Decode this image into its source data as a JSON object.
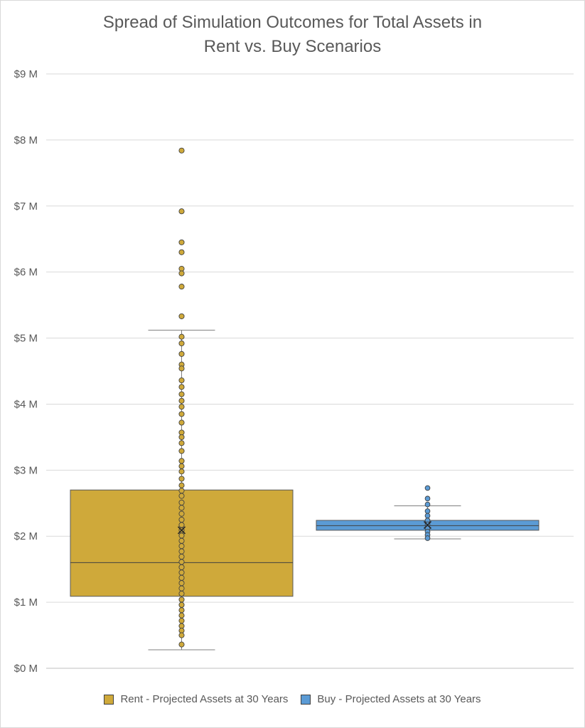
{
  "chart_data": {
    "type": "boxplot",
    "title": "Spread of Simulation Outcomes for Total Assets in Rent vs. Buy Scenarios",
    "title_lines": [
      "Spread of Simulation Outcomes for Total Assets in",
      "Rent vs. Buy Scenarios"
    ],
    "ylim": [
      0,
      9
    ],
    "y_tick_labels": [
      "$0 M",
      "$1 M",
      "$2 M",
      "$3 M",
      "$4 M",
      "$5 M",
      "$6 M",
      "$7 M",
      "$8 M",
      "$9 M"
    ],
    "grid": true,
    "legend_position": "bottom",
    "series": [
      {
        "name": "Rent - Projected Assets at 30 Years",
        "color": "#CFA93A",
        "min": 0.28,
        "q1": 1.09,
        "median": 1.6,
        "q3": 2.7,
        "max": 5.12,
        "mean": 2.09,
        "points": [
          7.84,
          6.92,
          6.45,
          6.3,
          6.05,
          5.98,
          5.78,
          5.33,
          5.02,
          4.92,
          4.76,
          4.6,
          4.54,
          4.36,
          4.26,
          4.15,
          4.05,
          3.96,
          3.85,
          3.72,
          3.57,
          3.5,
          3.41,
          3.29,
          3.14,
          3.06,
          2.98,
          2.87,
          2.77,
          2.69,
          2.61,
          2.51,
          2.43,
          2.34,
          2.25,
          2.17,
          2.09,
          2.01,
          1.93,
          1.85,
          1.77,
          1.69,
          1.61,
          1.53,
          1.45,
          1.37,
          1.29,
          1.21,
          1.13,
          1.04,
          0.96,
          0.88,
          0.8,
          0.72,
          0.64,
          0.57,
          0.5,
          0.36
        ]
      },
      {
        "name": "Buy - Projected Assets at 30 Years",
        "color": "#5B9BD5",
        "min": 1.96,
        "q1": 2.09,
        "median": 2.16,
        "q3": 2.24,
        "max": 2.46,
        "mean": 2.17,
        "points": [
          2.73,
          2.57,
          2.48,
          2.38,
          2.31,
          2.24,
          2.18,
          2.12,
          2.07,
          2.02,
          1.97
        ]
      }
    ]
  }
}
